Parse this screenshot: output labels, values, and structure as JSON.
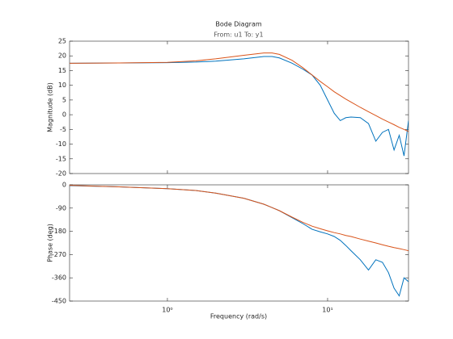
{
  "chart_data": [
    {
      "type": "line",
      "title": "Bode Diagram",
      "subtitle": "From: u1  To: y1",
      "ylabel": "Magnitude (dB)",
      "xscale": "log",
      "grid": false,
      "x": [
        0.245,
        0.5,
        1,
        1.5,
        2,
        3,
        4,
        4.5,
        5,
        6,
        7,
        8,
        9,
        10,
        11,
        12,
        13,
        14,
        16,
        18,
        20,
        22,
        24,
        26,
        28,
        30,
        32
      ],
      "xlim": [
        0.245,
        32
      ],
      "xticks": [
        1,
        10
      ],
      "ylim": [
        -20,
        25
      ],
      "yticks": [
        25,
        20,
        15,
        10,
        5,
        0,
        -5,
        -10,
        -15,
        -20
      ],
      "series": [
        {
          "color": "#0072bd",
          "values": [
            17.5,
            17.6,
            17.7,
            17.9,
            18.2,
            19,
            19.8,
            19.8,
            19.3,
            17.5,
            15.5,
            13.5,
            10,
            5,
            0.5,
            -2,
            -1,
            -0.8,
            -1,
            -3,
            -9,
            -6,
            -5,
            -12,
            -7,
            -14,
            -2
          ]
        },
        {
          "color": "#d95319",
          "values": [
            17.5,
            17.6,
            17.8,
            18.3,
            19,
            20.2,
            21,
            21,
            20.5,
            18.5,
            16,
            13.5,
            11.3,
            9.5,
            7.8,
            6.5,
            5.3,
            4.3,
            2.5,
            1,
            -0.3,
            -1.5,
            -2.5,
            -3.4,
            -4.3,
            -5,
            -5.7
          ]
        }
      ]
    },
    {
      "type": "line",
      "ylabel": "Phase (deg)",
      "xlabel": "Frequency  (rad/s)",
      "xscale": "log",
      "grid": false,
      "x": [
        0.245,
        0.5,
        1,
        1.5,
        2,
        3,
        4,
        4.5,
        5,
        6,
        7,
        8,
        9,
        10,
        11,
        12,
        13,
        14,
        16,
        18,
        20,
        22,
        24,
        26,
        28,
        30,
        32
      ],
      "xlim": [
        0.245,
        32
      ],
      "xticks": [
        {
          "value": 1,
          "label": "10⁰"
        },
        {
          "value": 10,
          "label": "10¹"
        }
      ],
      "ylim": [
        -450,
        0
      ],
      "yticks": [
        0,
        -90,
        -180,
        -270,
        -360,
        -450
      ],
      "series": [
        {
          "color": "#0072bd",
          "values": [
            -3,
            -8,
            -15,
            -22,
            -32,
            -52,
            -75,
            -88,
            -100,
            -127,
            -150,
            -172,
            -182,
            -190,
            -200,
            -215,
            -235,
            -255,
            -290,
            -330,
            -290,
            -300,
            -340,
            -400,
            -430,
            -360,
            -375
          ]
        },
        {
          "color": "#d95319",
          "values": [
            -2,
            -8,
            -15,
            -22,
            -32,
            -52,
            -75,
            -88,
            -100,
            -125,
            -145,
            -160,
            -170,
            -178,
            -185,
            -190,
            -196,
            -200,
            -210,
            -218,
            -225,
            -232,
            -238,
            -243,
            -247,
            -251,
            -255
          ]
        }
      ]
    }
  ]
}
